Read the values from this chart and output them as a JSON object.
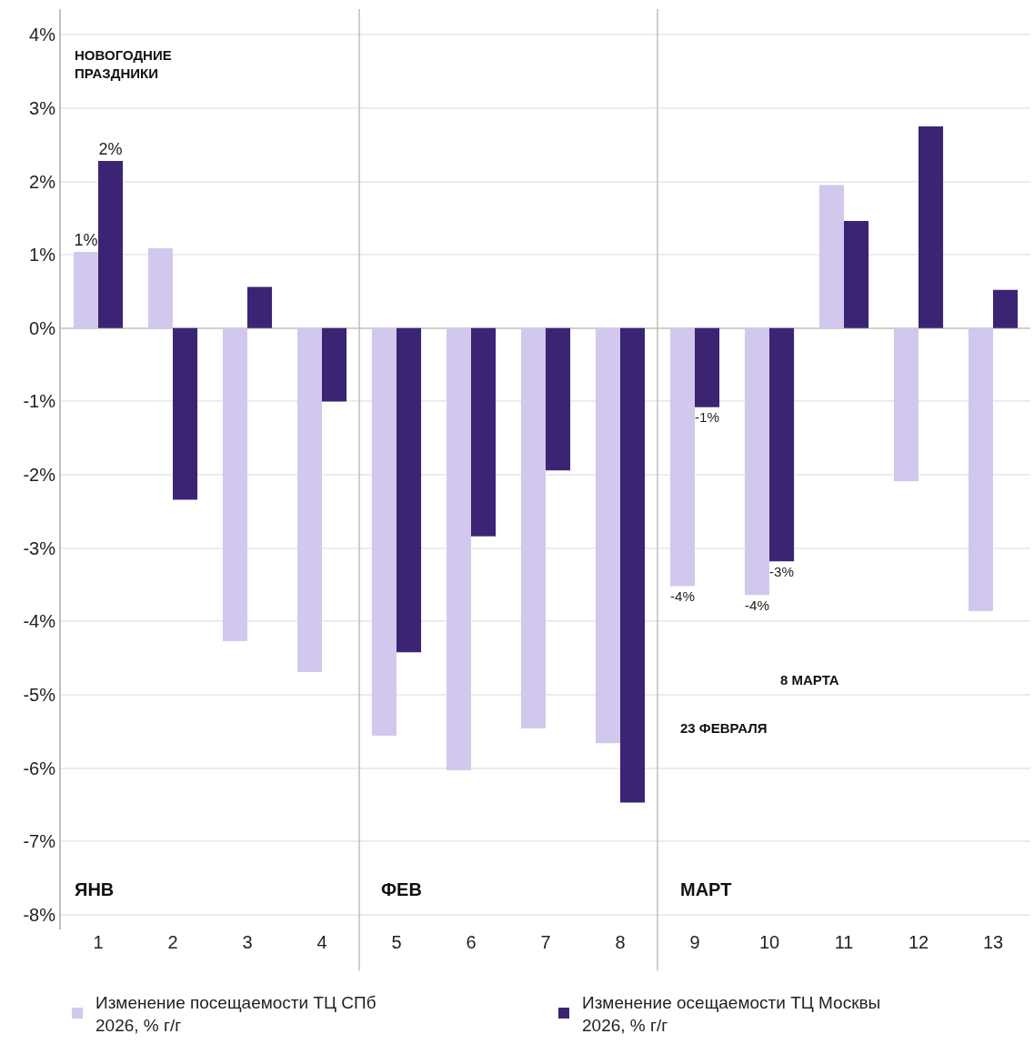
{
  "chart_data": {
    "type": "bar",
    "x": [
      1,
      2,
      3,
      4,
      5,
      6,
      7,
      8,
      9,
      10,
      11,
      12,
      13
    ],
    "xlim": [
      0.5,
      13.5
    ],
    "xticks": [
      1,
      2,
      3,
      4,
      5,
      6,
      7,
      8,
      9,
      10,
      11,
      12,
      13
    ],
    "ylim": [
      -8.2,
      4.35
    ],
    "yticks": [
      {
        "value": -8,
        "label": "-8%"
      },
      {
        "value": -7,
        "label": "-7%"
      },
      {
        "value": -6,
        "label": "-6%"
      },
      {
        "value": -5,
        "label": "-5%"
      },
      {
        "value": -4,
        "label": "-4%"
      },
      {
        "value": -3,
        "label": "-3%"
      },
      {
        "value": -2,
        "label": "-2%"
      },
      {
        "value": -1,
        "label": "-1%"
      },
      {
        "value": 0,
        "label": "0%"
      },
      {
        "value": 1,
        "label": "1%"
      },
      {
        "value": 2,
        "label": "2%"
      },
      {
        "value": 3,
        "label": "3%"
      },
      {
        "value": 4,
        "label": "4%"
      }
    ],
    "series": [
      {
        "name": "Изменение посещаемости ТЦ СПб 2026, % г/г",
        "color": "#d2c8ee",
        "values": [
          1.04,
          1.09,
          -4.27,
          -4.69,
          -5.56,
          -6.03,
          -5.46,
          -5.66,
          -3.52,
          -3.64,
          1.95,
          -2.09,
          -3.86
        ],
        "value_labels": [
          "1%",
          null,
          null,
          null,
          null,
          null,
          null,
          null,
          "-4%",
          "-4%",
          null,
          null,
          null
        ]
      },
      {
        "name": "Изменение осещаемости ТЦ Москвы 2026, % г/г",
        "color": "#3b2474",
        "values": [
          2.28,
          -2.34,
          0.56,
          -1.0,
          -4.42,
          -2.84,
          -1.94,
          -6.47,
          -1.08,
          -3.18,
          1.46,
          2.75,
          0.52
        ],
        "value_labels": [
          "2%",
          null,
          null,
          null,
          null,
          null,
          null,
          null,
          "-1%",
          "-3%",
          null,
          null,
          null
        ]
      }
    ],
    "ref_lines": [
      {
        "axis": "x",
        "value": 4.5,
        "color": "#bfbfbf"
      },
      {
        "axis": "x",
        "value": 8.5,
        "color": "#bfbfbf"
      }
    ],
    "annotations": [
      "НОВОГОДНИЕ ПРАЗДНИКИ",
      "ЯНВ",
      "ФЕВ",
      "МАРТ",
      "8 МАРТА",
      "23 ФЕВРАЛЯ"
    ],
    "grid": "y",
    "legend": "bottom"
  }
}
